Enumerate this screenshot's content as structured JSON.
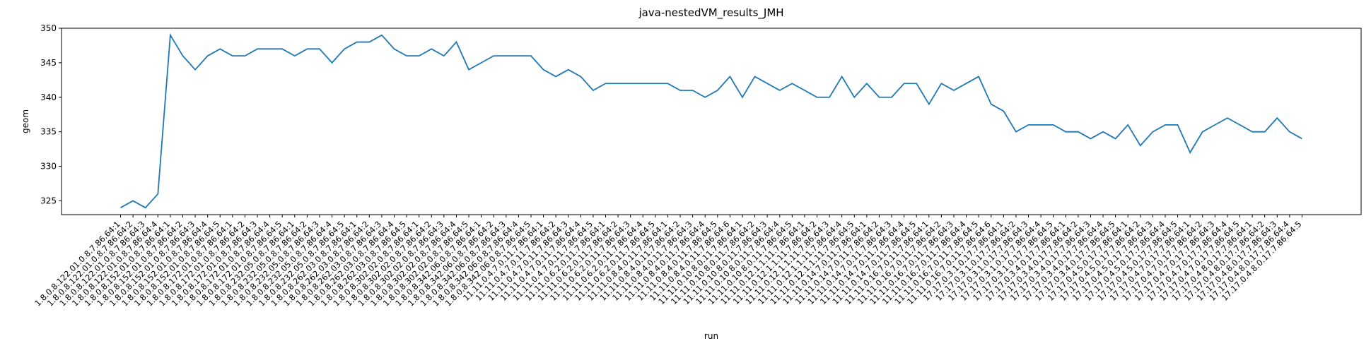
{
  "chart_data": {
    "type": "line",
    "title": "java-nestedVM_results_JMH",
    "x_label": "run",
    "y_label": "geom",
    "color": "#1f77b4",
    "ylim": [
      323,
      350
    ],
    "yticks": [
      325,
      330,
      335,
      340,
      345,
      350
    ],
    "categories": [
      "1.8.0.8.122.01.0.8.7.86.64:1",
      "1.8.0.8.122.01.0.8.7.86.64:2",
      "1.8.0.8.122.01.0.8.7.86.64:3",
      "1.8.0.8.122.01.0.8.7.86.64:4",
      "1.8.0.8.152.01.0.8.7.86.64:1",
      "1.8.0.8.152.01.0.8.7.86.64:2",
      "1.8.0.8.152.01.0.8.7.86.64:3",
      "1.8.0.8.152.01.0.8.7.86.64:4",
      "1.8.0.8.152.01.0.8.7.86.64:5",
      "1.8.0.8.172.01.0.8.7.86.64:1",
      "1.8.0.8.172.01.0.8.7.86.64:2",
      "1.8.0.8.172.01.0.8.7.86.64:3",
      "1.8.0.8.172.01.0.8.7.86.64:4",
      "1.8.0.8.172.01.0.8.7.86.64:5",
      "1.8.0.8.232.05.0.8.7.86.64:1",
      "1.8.0.8.232.05.0.8.7.86.64:2",
      "1.8.0.8.232.05.0.8.7.86.64:3",
      "1.8.0.8.232.05.0.8.7.86.64:4",
      "1.8.0.8.232.05.0.8.7.86.64:5",
      "1.8.0.8.262.03.0.8.7.86.64:1",
      "1.8.0.8.262.03.0.8.7.86.64:2",
      "1.8.0.8.262.03.0.8.7.86.64:3",
      "1.8.0.8.262.03.0.8.7.86.64:4",
      "1.8.0.8.262.03.0.8.7.86.64:5",
      "1.8.0.8.302.02.0.8.7.86.64:1",
      "1.8.0.8.302.02.0.8.7.86.64:2",
      "1.8.0.8.302.02.0.8.7.86.64:3",
      "1.8.0.8.302.02.0.8.7.86.64:4",
      "1.8.0.8.302.02.0.8.7.86.64:5",
      "1.8.0.8.342.06.0.8.7.86.64:1",
      "1.8.0.8.342.06.0.8.7.86.64:2",
      "1.8.0.8.342.06.0.8.7.86.64:3",
      "1.8.0.8.342.06.0.8.7.86.64:4",
      "1.8.0.8.342.06.0.8.7.86.64:5",
      "11.11.0.4.7.0.11.7.86.64:1",
      "11.11.0.4.7.0.11.7.86.64:2",
      "11.11.0.4.7.0.11.7.86.64:3",
      "11.11.0.4.7.0.11.7.86.64:4",
      "11.11.0.4.7.0.11.7.86.64:5",
      "11.11.0.6.2.0.11.7.86.64:1",
      "11.11.0.6.2.0.11.7.86.64:2",
      "11.11.0.6.2.0.11.7.86.64:3",
      "11.11.0.6.2.0.11.7.86.64:4",
      "11.11.0.6.2.0.11.7.86.64:5",
      "11.11.0.8.4.0.11.7.86.64:1",
      "11.11.0.8.4.0.11.7.86.64:2",
      "11.11.0.8.4.0.11.7.86.64:3",
      "11.11.0.8.4.0.11.7.86.64:4",
      "11.11.0.8.4.0.11.7.86.64:5",
      "11.11.0.8.4.0.11.7.86.64:6",
      "11.11.0.10.8.0.11.7.86.64:1",
      "11.11.0.10.8.0.11.7.86.64:2",
      "11.11.0.10.8.0.11.7.86.64:3",
      "11.11.0.10.8.0.11.7.86.64:4",
      "11.11.0.10.8.0.11.7.86.64:5",
      "11.11.0.12.1.1.11.7.86.64:1",
      "11.11.0.12.1.1.11.7.86.64:2",
      "11.11.0.12.1.1.11.7.86.64:3",
      "11.11.0.12.1.1.11.7.86.64:4",
      "11.11.0.12.1.1.11.7.86.64:5",
      "11.11.0.14.7.0.11.7.86.64:1",
      "11.11.0.14.7.0.11.7.86.64:2",
      "11.11.0.14.7.0.11.7.86.64:3",
      "11.11.0.14.7.0.11.7.86.64:4",
      "11.11.0.14.7.0.11.7.86.64:5",
      "11.11.0.16.7.0.11.7.86.64:1",
      "11.11.0.16.7.0.11.7.86.64:2",
      "11.11.0.16.7.0.11.7.86.64:3",
      "11.11.0.16.7.0.11.7.86.64:4",
      "11.11.0.16.7.0.11.7.86.64:5",
      "11.11.0.16.7.0.11.7.86.64:6",
      "17.17.0.3.1.0.17.7.86.64:1",
      "17.17.0.3.1.0.17.7.86.64:2",
      "17.17.0.3.1.0.17.7.86.64:3",
      "17.17.0.3.1.0.17.7.86.64:4",
      "17.17.0.3.1.0.17.7.86.64:5",
      "17.17.0.3.4.0.17.7.86.64:1",
      "17.17.0.3.4.0.17.7.86.64:2",
      "17.17.0.3.4.0.17.7.86.64:3",
      "17.17.0.3.4.0.17.7.86.64:4",
      "17.17.0.3.4.0.17.7.86.64:5",
      "17.17.0.4.5.0.17.7.86.64:1",
      "17.17.0.4.5.0.17.7.86.64:2",
      "17.17.0.4.5.0.17.7.86.64:3",
      "17.17.0.4.5.0.17.7.86.64:4",
      "17.17.0.4.5.0.17.7.86.64:5",
      "17.17.0.4.7.0.17.7.86.64:1",
      "17.17.0.4.7.0.17.7.86.64:2",
      "17.17.0.4.7.0.17.7.86.64:3",
      "17.17.0.4.7.0.17.7.86.64:4",
      "17.17.0.4.7.0.17.7.86.64:5",
      "17.17.0.4.8.0.17.7.86.64:1",
      "17.17.0.4.8.0.17.7.86.64:2",
      "17.17.0.4.8.0.17.7.86.64:3",
      "17.17.0.4.8.0.17.7.86.64:4",
      "17.17.0.4.8.0.17.7.86.64:5"
    ],
    "values": [
      324,
      325,
      324,
      326,
      349,
      346,
      344,
      346,
      347,
      346,
      346,
      347,
      347,
      347,
      346,
      347,
      347,
      345,
      347,
      348,
      348,
      349,
      347,
      346,
      346,
      347,
      346,
      348,
      344,
      345,
      346,
      346,
      346,
      346,
      344,
      343,
      344,
      343,
      341,
      342,
      342,
      342,
      342,
      342,
      342,
      341,
      341,
      340,
      341,
      343,
      340,
      343,
      342,
      341,
      342,
      341,
      340,
      340,
      343,
      340,
      342,
      340,
      340,
      342,
      342,
      339,
      342,
      341,
      342,
      343,
      339,
      338,
      335,
      336,
      336,
      336,
      335,
      335,
      334,
      335,
      334,
      336,
      333,
      335,
      336,
      336,
      332,
      335,
      336,
      337,
      336,
      335,
      335,
      337,
      335,
      334
    ]
  }
}
